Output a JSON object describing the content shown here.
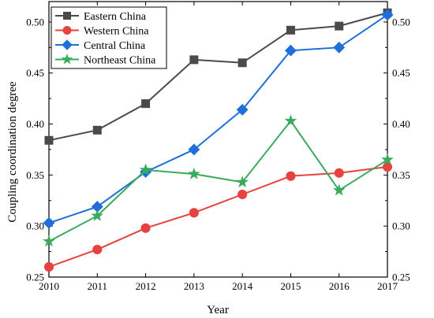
{
  "chart_data": {
    "type": "line",
    "title": "",
    "xlabel": "Year",
    "ylabel": "Coupling coordination degree",
    "xlim": [
      2010,
      2017
    ],
    "ylim": [
      0.25,
      0.52
    ],
    "x": [
      2010,
      2011,
      2012,
      2013,
      2014,
      2015,
      2016,
      2017
    ],
    "x_tick_labels": [
      "2010",
      "2011",
      "2012",
      "2013",
      "2014",
      "2015",
      "2016",
      "2017"
    ],
    "y_ticks": [
      0.25,
      0.3,
      0.35,
      0.4,
      0.45,
      0.5
    ],
    "y_tick_labels": [
      "0.25",
      "0.30",
      "0.35",
      "0.40",
      "0.45",
      "0.50"
    ],
    "right_axis_mirrored": true,
    "grid": false,
    "legend_position": "top-left",
    "series": [
      {
        "name": "Eastern China",
        "color": "#4a4a4a",
        "marker": "square",
        "values": [
          0.384,
          0.394,
          0.42,
          0.463,
          0.46,
          0.492,
          0.496,
          0.509
        ]
      },
      {
        "name": "Western China",
        "color": "#e8413f",
        "marker": "circle",
        "values": [
          0.26,
          0.277,
          0.298,
          0.313,
          0.331,
          0.349,
          0.352,
          0.358
        ]
      },
      {
        "name": "Central China",
        "color": "#1f6fd8",
        "marker": "diamond",
        "values": [
          0.303,
          0.319,
          0.353,
          0.375,
          0.414,
          0.472,
          0.475,
          0.507
        ]
      },
      {
        "name": "Northeast China",
        "color": "#3aaa5c",
        "marker": "star",
        "values": [
          0.285,
          0.31,
          0.355,
          0.351,
          0.343,
          0.403,
          0.335,
          0.365
        ]
      }
    ]
  }
}
